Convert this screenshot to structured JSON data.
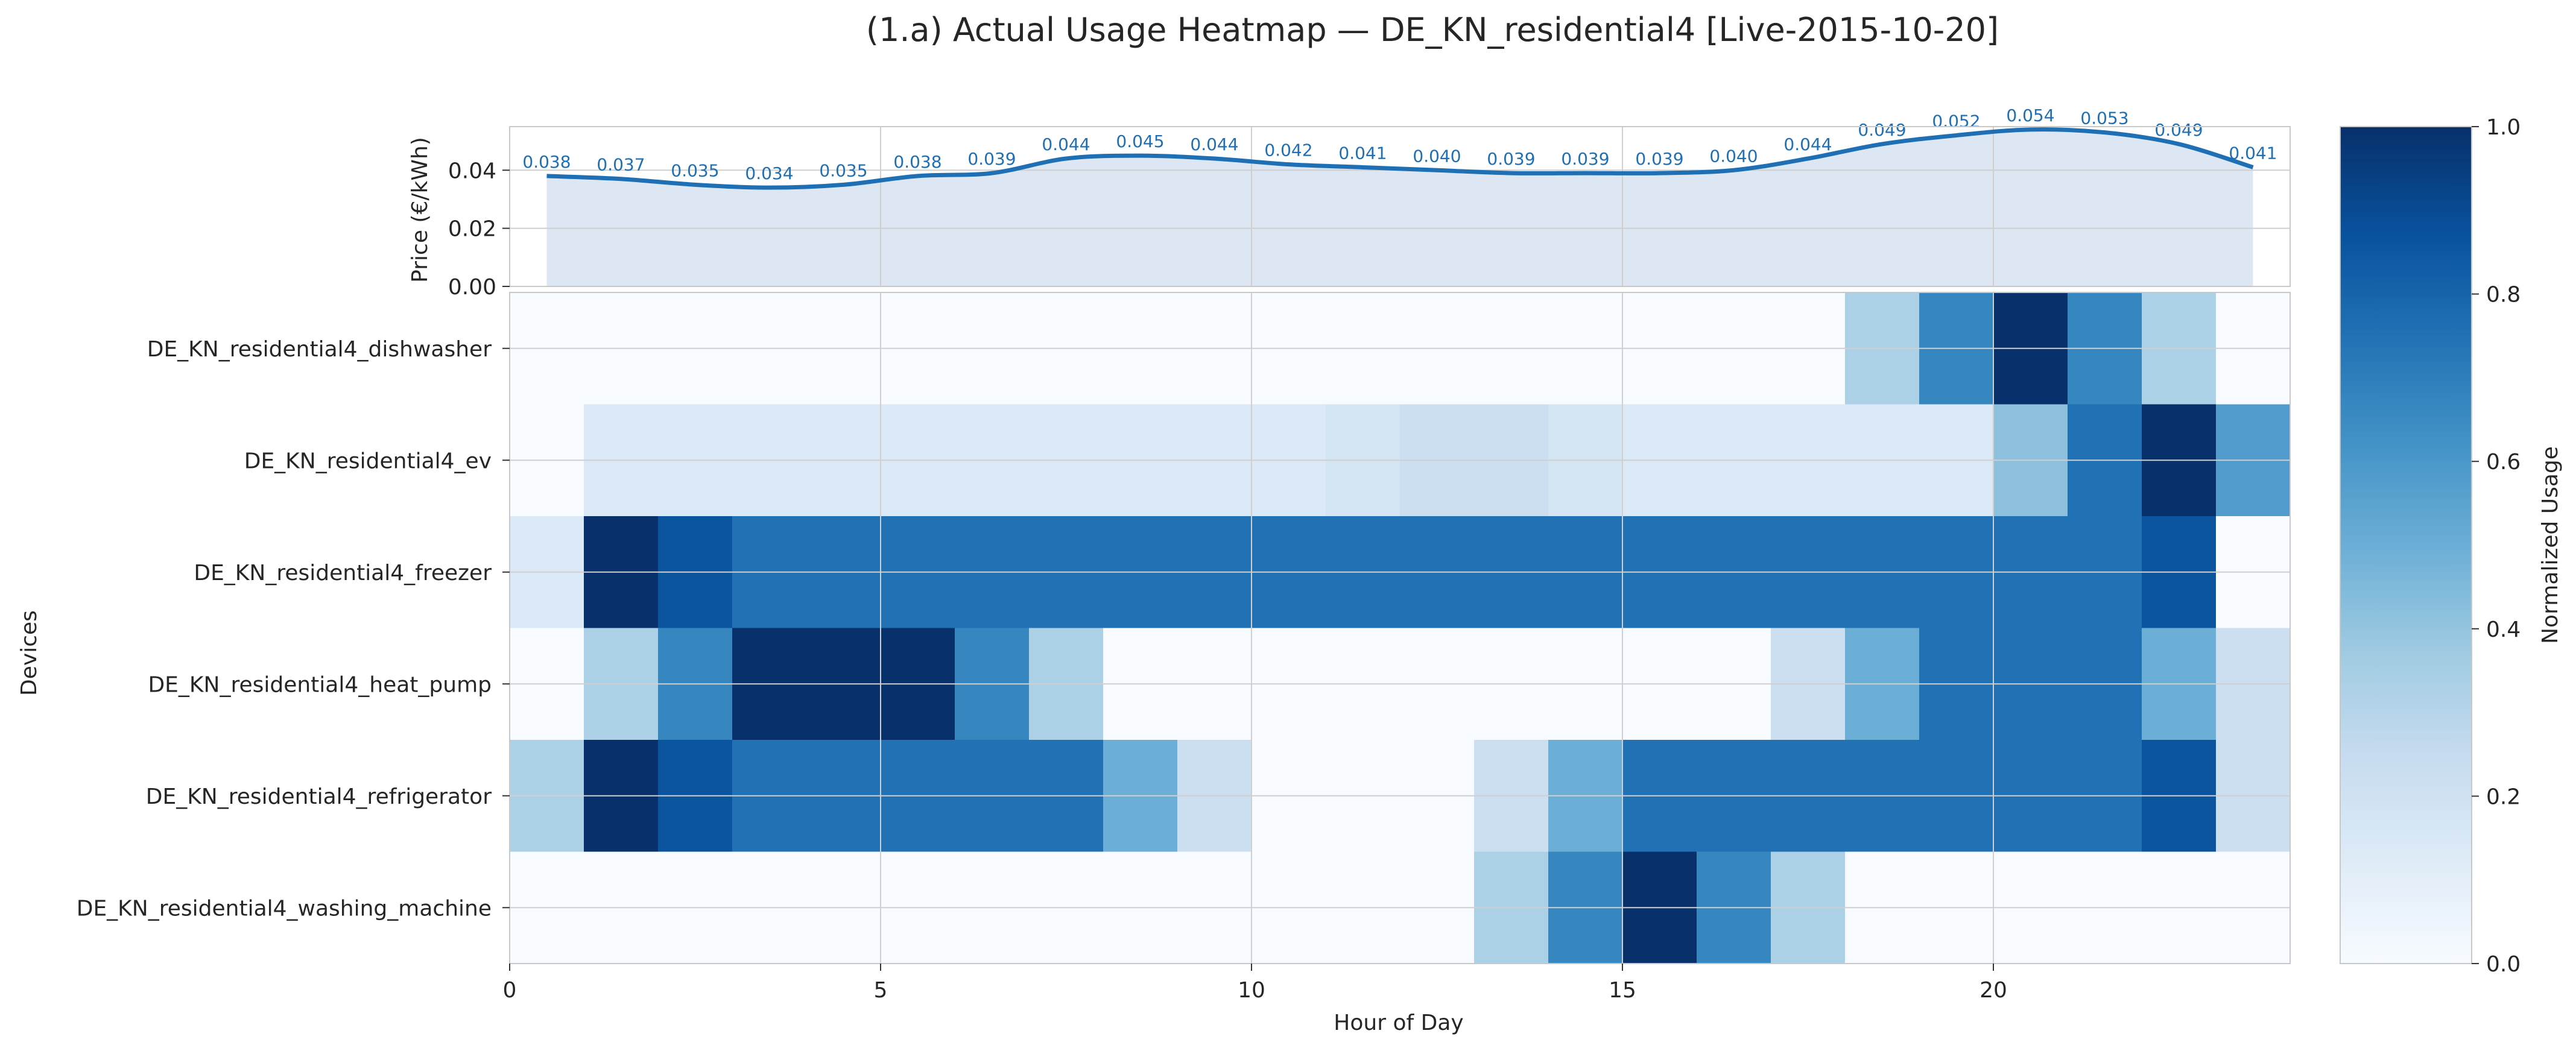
{
  "chart_data": {
    "title": "(1.a) Actual Usage Heatmap — DE_KN_residential4 [Live-2015-10-20]",
    "price_panel": {
      "type": "area",
      "ylabel": "Price (€/kWh)",
      "ylim": [
        0,
        0.055
      ],
      "yticks": [
        "0.00",
        "0.02",
        "0.04"
      ],
      "x": [
        0.5,
        1.5,
        2.5,
        3.5,
        4.5,
        5.5,
        6.5,
        7.5,
        8.5,
        9.5,
        10.5,
        11.5,
        12.5,
        13.5,
        14.5,
        15.5,
        16.5,
        17.5,
        18.5,
        19.5,
        20.5,
        21.5,
        22.5,
        23.5
      ],
      "values": [
        0.038,
        0.037,
        0.035,
        0.034,
        0.035,
        0.038,
        0.039,
        0.044,
        0.045,
        0.044,
        0.042,
        0.041,
        0.04,
        0.039,
        0.039,
        0.039,
        0.04,
        0.044,
        0.049,
        0.052,
        0.054,
        0.053,
        0.049,
        0.041
      ],
      "labels": [
        "0.038",
        "0.037",
        "0.035",
        "0.034",
        "0.035",
        "0.038",
        "0.039",
        "0.044",
        "0.045",
        "0.044",
        "0.042",
        "0.041",
        "0.040",
        "0.039",
        "0.039",
        "0.039",
        "0.040",
        "0.044",
        "0.049",
        "0.052",
        "0.054",
        "0.053",
        "0.049",
        "0.041"
      ],
      "line_color": "#1f6fb4",
      "fill_color": "#dde7f3",
      "grid": true
    },
    "heatmap": {
      "type": "heatmap",
      "xlabel": "Hour of Day",
      "ylabel": "Devices",
      "xlim": [
        0,
        24
      ],
      "xticks": [
        "0",
        "5",
        "10",
        "15",
        "20"
      ],
      "rows": [
        "DE_KN_residential4_dishwasher",
        "DE_KN_residential4_ev",
        "DE_KN_residential4_freezer",
        "DE_KN_residential4_heat_pump",
        "DE_KN_residential4_refrigerator",
        "DE_KN_residential4_washing_machine"
      ],
      "values": [
        [
          0,
          0,
          0,
          0,
          0,
          0,
          0,
          0,
          0,
          0,
          0,
          0,
          0,
          0,
          0,
          0,
          0,
          0,
          0.33,
          0.67,
          1.0,
          0.67,
          0.33,
          0
        ],
        [
          0,
          0.14,
          0.14,
          0.14,
          0.14,
          0.14,
          0.14,
          0.14,
          0.14,
          0.14,
          0.14,
          0.18,
          0.22,
          0.22,
          0.18,
          0.14,
          0.14,
          0.14,
          0.14,
          0.14,
          0.42,
          0.75,
          1.0,
          0.58
        ],
        [
          0.14,
          1.0,
          0.86,
          0.75,
          0.75,
          0.75,
          0.75,
          0.75,
          0.75,
          0.75,
          0.75,
          0.75,
          0.75,
          0.75,
          0.75,
          0.75,
          0.75,
          0.75,
          0.75,
          0.75,
          0.75,
          0.75,
          0.86,
          0
        ],
        [
          0,
          0.33,
          0.67,
          1.0,
          1.0,
          1.0,
          0.67,
          0.33,
          0,
          0,
          0,
          0,
          0,
          0,
          0,
          0,
          0,
          0.22,
          0.5,
          0.75,
          0.75,
          0.75,
          0.5,
          0.22
        ],
        [
          0.33,
          1.0,
          0.86,
          0.75,
          0.75,
          0.75,
          0.75,
          0.75,
          0.5,
          0.22,
          0,
          0,
          0,
          0.22,
          0.5,
          0.75,
          0.75,
          0.75,
          0.75,
          0.75,
          0.75,
          0.75,
          0.86,
          0.22
        ],
        [
          0,
          0,
          0,
          0,
          0,
          0,
          0,
          0,
          0,
          0,
          0,
          0,
          0,
          0.33,
          0.67,
          1.0,
          0.67,
          0.33,
          0,
          0,
          0,
          0,
          0,
          0
        ]
      ],
      "colormap": "Blues",
      "vmin": 0,
      "vmax": 1
    },
    "colorbar": {
      "label": "Normalized Usage",
      "ticks": [
        "0.0",
        "0.2",
        "0.4",
        "0.6",
        "0.8",
        "1.0"
      ]
    }
  }
}
